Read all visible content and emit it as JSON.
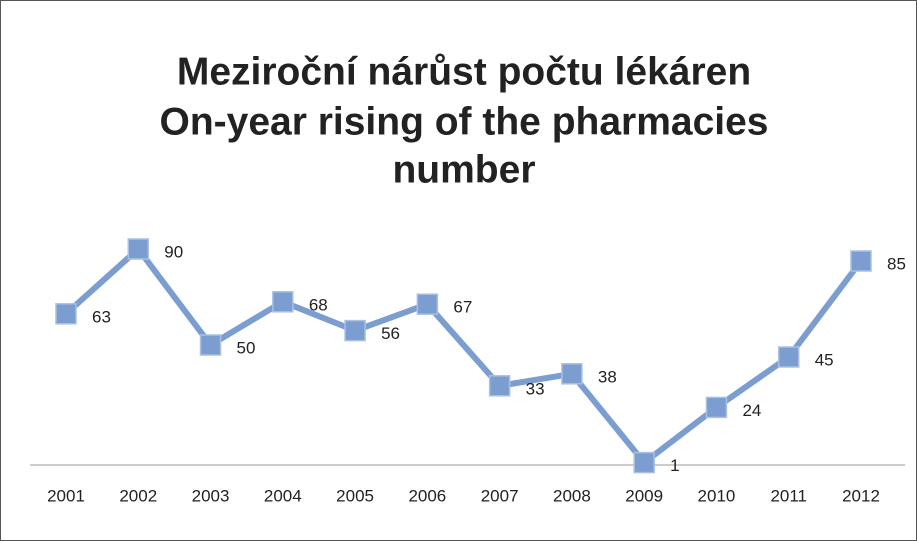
{
  "chart_data": {
    "type": "line",
    "title": [
      "Meziroční nárůst počtu lékáren",
      "On-year rising of the pharmacies",
      "number"
    ],
    "categories": [
      "2001",
      "2002",
      "2003",
      "2004",
      "2005",
      "2006",
      "2007",
      "2008",
      "2009",
      "2010",
      "2011",
      "2012"
    ],
    "values": [
      63,
      90,
      50,
      68,
      56,
      67,
      33,
      38,
      1,
      24,
      45,
      85
    ],
    "color": "#7b9dd0",
    "ylim": [
      0,
      100
    ]
  }
}
